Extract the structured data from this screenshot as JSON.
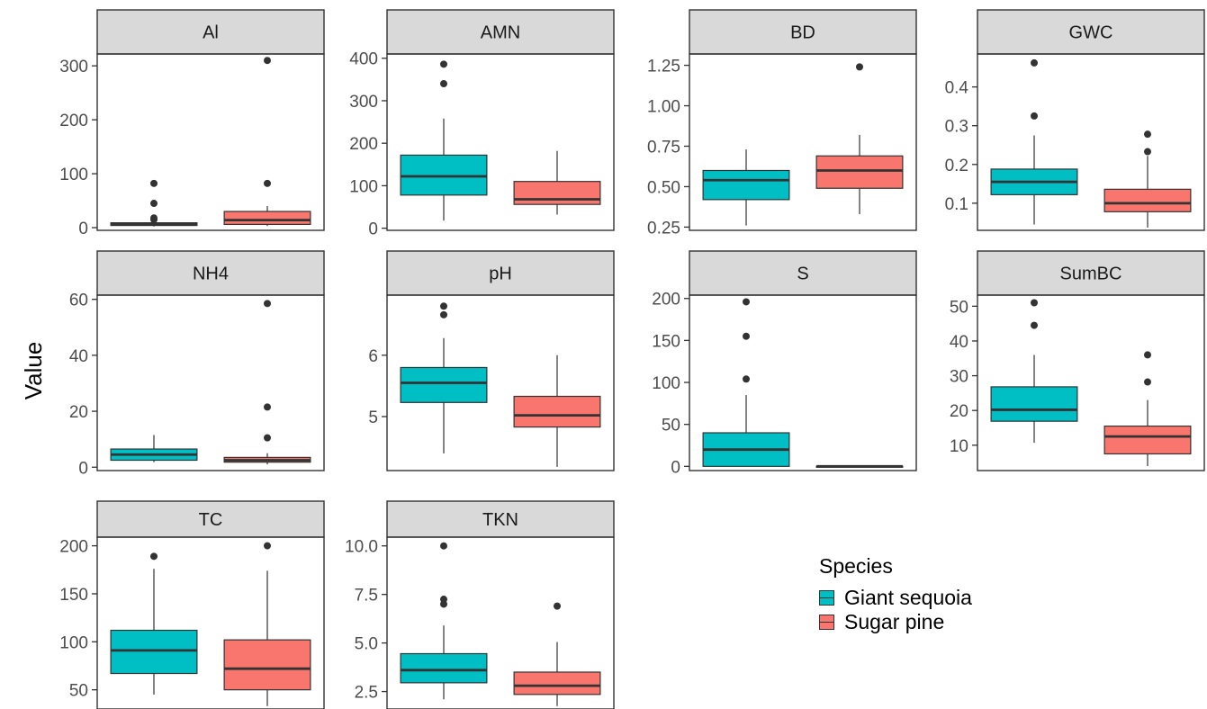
{
  "chart_data": {
    "type": "box",
    "ylabel": "Value",
    "legend": {
      "title": "Species",
      "placement": "right",
      "entries": [
        {
          "name": "Giant sequoia",
          "color": "#00BFC4"
        },
        {
          "name": "Sugar pine",
          "color": "#F8766D"
        }
      ]
    },
    "panels": [
      {
        "name": "Al",
        "ylim": [
          -5,
          322
        ],
        "ticks": [
          0,
          100,
          200,
          300
        ],
        "tick_labels": [
          "0",
          "100",
          "200",
          "300"
        ],
        "boxes": [
          {
            "series": "Giant sequoia",
            "lower_whisker": 2,
            "q1": 4,
            "median": 6,
            "q3": 9,
            "upper_whisker": 12,
            "outliers": [
              15,
              18,
              45,
              82
            ]
          },
          {
            "series": "Sugar pine",
            "lower_whisker": 3,
            "q1": 6,
            "median": 14,
            "q3": 30,
            "upper_whisker": 40,
            "outliers": [
              82,
              310
            ]
          }
        ]
      },
      {
        "name": "AMN",
        "ylim": [
          -5,
          410
        ],
        "ticks": [
          0,
          100,
          200,
          300,
          400
        ],
        "tick_labels": [
          "0",
          "100",
          "200",
          "300",
          "400"
        ],
        "boxes": [
          {
            "series": "Giant sequoia",
            "lower_whisker": 18,
            "q1": 78,
            "median": 122,
            "q3": 172,
            "upper_whisker": 258,
            "outliers": [
              340,
              386
            ]
          },
          {
            "series": "Sugar pine",
            "lower_whisker": 32,
            "q1": 56,
            "median": 68,
            "q3": 110,
            "upper_whisker": 182,
            "outliers": []
          }
        ]
      },
      {
        "name": "BD",
        "ylim": [
          0.23,
          1.32
        ],
        "ticks": [
          0.25,
          0.5,
          0.75,
          1.0,
          1.25
        ],
        "tick_labels": [
          "0.25",
          "0.50",
          "0.75",
          "1.00",
          "1.25"
        ],
        "boxes": [
          {
            "series": "Giant sequoia",
            "lower_whisker": 0.26,
            "q1": 0.42,
            "median": 0.54,
            "q3": 0.6,
            "upper_whisker": 0.73,
            "outliers": []
          },
          {
            "series": "Sugar pine",
            "lower_whisker": 0.33,
            "q1": 0.49,
            "median": 0.6,
            "q3": 0.69,
            "upper_whisker": 0.82,
            "outliers": [
              1.24
            ]
          }
        ]
      },
      {
        "name": "GWC",
        "ylim": [
          0.03,
          0.485
        ],
        "ticks": [
          0.1,
          0.2,
          0.3,
          0.4
        ],
        "tick_labels": [
          "0.1",
          "0.2",
          "0.3",
          "0.4"
        ],
        "boxes": [
          {
            "series": "Giant sequoia",
            "lower_whisker": 0.045,
            "q1": 0.122,
            "median": 0.155,
            "q3": 0.188,
            "upper_whisker": 0.275,
            "outliers": [
              0.325,
              0.462
            ]
          },
          {
            "series": "Sugar pine",
            "lower_whisker": 0.037,
            "q1": 0.078,
            "median": 0.1,
            "q3": 0.136,
            "upper_whisker": 0.222,
            "outliers": [
              0.233,
              0.278
            ]
          }
        ]
      },
      {
        "name": "NH4",
        "ylim": [
          -1.2,
          61.5
        ],
        "ticks": [
          0,
          20,
          40,
          60
        ],
        "tick_labels": [
          "0",
          "20",
          "40",
          "60"
        ],
        "boxes": [
          {
            "series": "Giant sequoia",
            "lower_whisker": 1.8,
            "q1": 2.5,
            "median": 4.5,
            "q3": 6.5,
            "upper_whisker": 11.5,
            "outliers": []
          },
          {
            "series": "Sugar pine",
            "lower_whisker": 1.0,
            "q1": 1.8,
            "median": 2.5,
            "q3": 3.5,
            "upper_whisker": 5.0,
            "outliers": [
              10.5,
              21.5,
              58.5
            ]
          }
        ]
      },
      {
        "name": "pH",
        "ylim": [
          4.12,
          6.98
        ],
        "ticks": [
          5,
          6
        ],
        "tick_labels": [
          "5",
          "6"
        ],
        "boxes": [
          {
            "series": "Giant sequoia",
            "lower_whisker": 4.4,
            "q1": 5.23,
            "median": 5.55,
            "q3": 5.8,
            "upper_whisker": 6.28,
            "outliers": [
              6.66,
              6.8
            ]
          },
          {
            "series": "Sugar pine",
            "lower_whisker": 4.18,
            "q1": 4.83,
            "median": 5.02,
            "q3": 5.33,
            "upper_whisker": 6.0,
            "outliers": []
          }
        ]
      },
      {
        "name": "S",
        "ylim": [
          -5,
          204
        ],
        "ticks": [
          0,
          50,
          100,
          150,
          200
        ],
        "tick_labels": [
          "0",
          "50",
          "100",
          "150",
          "200"
        ],
        "boxes": [
          {
            "series": "Giant sequoia",
            "lower_whisker": 0,
            "q1": 0,
            "median": 20,
            "q3": 40,
            "upper_whisker": 85,
            "outliers": [
              104,
              155,
              196
            ]
          },
          {
            "series": "Sugar pine",
            "lower_whisker": 0,
            "q1": 0,
            "median": 0,
            "q3": 0,
            "upper_whisker": 0,
            "outliers": []
          }
        ]
      },
      {
        "name": "SumBC",
        "ylim": [
          2.7,
          53.2
        ],
        "ticks": [
          10,
          20,
          30,
          40,
          50
        ],
        "tick_labels": [
          "10",
          "20",
          "30",
          "40",
          "50"
        ],
        "boxes": [
          {
            "series": "Giant sequoia",
            "lower_whisker": 10.7,
            "q1": 16.9,
            "median": 20.2,
            "q3": 26.8,
            "upper_whisker": 36.0,
            "outliers": [
              44.5,
              51.0
            ]
          },
          {
            "series": "Sugar pine",
            "lower_whisker": 4.0,
            "q1": 7.5,
            "median": 12.5,
            "q3": 15.5,
            "upper_whisker": 23.0,
            "outliers": [
              28.2,
              36.0
            ]
          }
        ]
      },
      {
        "name": "TC",
        "ylim": [
          30,
          209
        ],
        "ticks": [
          50,
          100,
          150,
          200
        ],
        "tick_labels": [
          "50",
          "100",
          "150",
          "200"
        ],
        "boxes": [
          {
            "series": "Giant sequoia",
            "lower_whisker": 45,
            "q1": 67,
            "median": 91,
            "q3": 112,
            "upper_whisker": 176,
            "outliers": [
              189
            ]
          },
          {
            "series": "Sugar pine",
            "lower_whisker": 33,
            "q1": 50,
            "median": 72,
            "q3": 102,
            "upper_whisker": 174,
            "outliers": [
              200
            ]
          }
        ]
      },
      {
        "name": "TKN",
        "ylim": [
          1.6,
          10.45
        ],
        "ticks": [
          2.5,
          5.0,
          7.5,
          10.0
        ],
        "tick_labels": [
          "2.5",
          "5.0",
          "7.5",
          "10.0"
        ],
        "boxes": [
          {
            "series": "Giant sequoia",
            "lower_whisker": 2.1,
            "q1": 2.95,
            "median": 3.6,
            "q3": 4.45,
            "upper_whisker": 5.9,
            "outliers": [
              7.0,
              7.25,
              10.0
            ]
          },
          {
            "series": "Sugar pine",
            "lower_whisker": 1.75,
            "q1": 2.35,
            "median": 2.8,
            "q3": 3.5,
            "upper_whisker": 5.05,
            "outliers": [
              6.9
            ]
          }
        ]
      }
    ]
  }
}
